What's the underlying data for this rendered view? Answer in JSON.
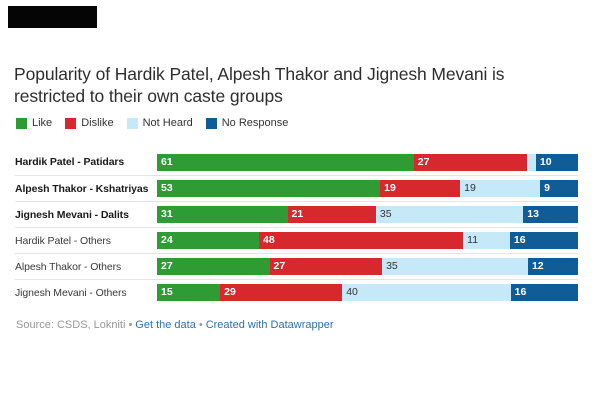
{
  "header": {
    "title_line1": "Popularity of Hardik Patel, Alpesh Thakor and Jignesh Mevani is",
    "title_line2": "restricted to their own caste groups"
  },
  "colors": {
    "like_green": "#2e9b35",
    "dislike_red": "#d7282e",
    "not_heard_lightblue": "#c5e9f8",
    "no_response_darkblue": "#0f5c97",
    "separator_gray": "#e4e4e4",
    "link_blue": "#2c71b0",
    "redaction_black": "#050505"
  },
  "legend": {
    "items": [
      {
        "label": "Like",
        "color": "#2e9b35"
      },
      {
        "label": "Dislike",
        "color": "#d7282e"
      },
      {
        "label": "Not Heard",
        "color": "#c5e9f8"
      },
      {
        "label": "No Response",
        "color": "#0f5c97"
      }
    ]
  },
  "chart_data": {
    "type": "bar",
    "orientation": "horizontal-stacked",
    "title": "Popularity of Hardik Patel, Alpesh Thakor and Jignesh Mevani is restricted to their own caste groups",
    "categories": [
      "Hardik Patel - Patidars",
      "Alpesh Thakor - Kshatriyas",
      "Jignesh Mevani - Dalits",
      "Hardik Patel - Others",
      "Alpesh Thakor - Others",
      "Jignesh Mevani - Others"
    ],
    "bold_categories": [
      true,
      true,
      true,
      false,
      false,
      false
    ],
    "series": [
      {
        "name": "Like",
        "color": "#2e9b35",
        "light": false,
        "values": [
          61,
          53,
          31,
          24,
          27,
          15
        ]
      },
      {
        "name": "Dislike",
        "color": "#d7282e",
        "light": false,
        "values": [
          27,
          19,
          21,
          48,
          27,
          29
        ]
      },
      {
        "name": "Not Heard",
        "color": "#c5e9f8",
        "light": true,
        "values": [
          2,
          19,
          35,
          11,
          35,
          40
        ]
      },
      {
        "name": "No Response",
        "color": "#0f5c97",
        "light": false,
        "values": [
          10,
          9,
          13,
          16,
          12,
          16
        ]
      }
    ],
    "xlim": [
      0,
      100
    ],
    "value_labels": true,
    "min_value_for_label": 4,
    "legend_position": "top"
  },
  "footer": {
    "source_text": "Source: CSDS, Lokniti",
    "bullet": "•",
    "get_data_link": "Get the data",
    "credit_link": "Created with Datawrapper"
  }
}
